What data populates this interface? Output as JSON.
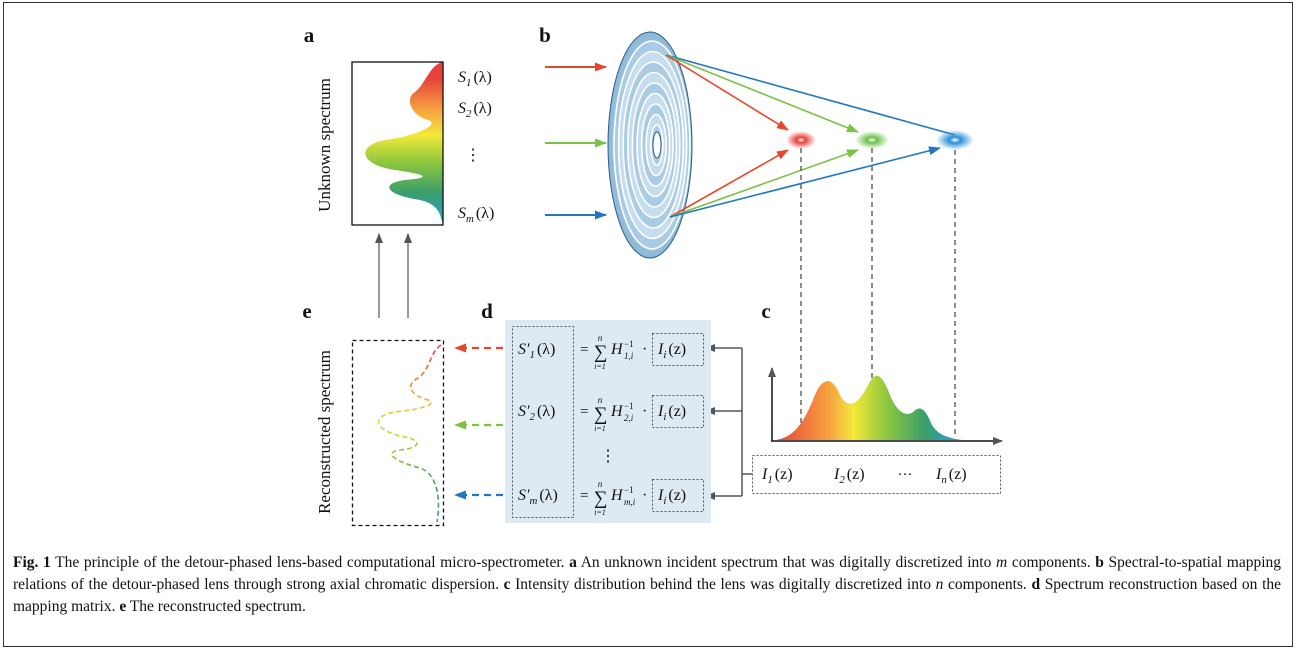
{
  "panel_labels": {
    "a": "a",
    "b": "b",
    "c": "c",
    "d": "d",
    "e": "e"
  },
  "panel_a": {
    "axis_label": "Unknown spectrum",
    "labels": [
      {
        "symbol": "S",
        "sub": "1",
        "arg": "(λ)"
      },
      {
        "symbol": "S",
        "sub": "2",
        "arg": "(λ)"
      },
      {
        "symbol": "S",
        "sub": "m",
        "arg": "(λ)"
      }
    ],
    "ellipsis": "⋮"
  },
  "panel_c": {
    "labels": [
      {
        "symbol": "I",
        "sub": "1",
        "arg": "(z)"
      },
      {
        "symbol": "I",
        "sub": "2",
        "arg": "(z)"
      },
      {
        "symbol": "I",
        "sub": "n",
        "arg": "(z)"
      }
    ],
    "ellipsis": "···"
  },
  "panel_d": {
    "rows": [
      {
        "lhs": {
          "symbol": "S′",
          "sub": "1",
          "arg": "(λ)"
        },
        "equals": "=",
        "sum": "∑",
        "upper": "n",
        "lower": "i=1",
        "matrix": {
          "symbol": "H",
          "sup": "−1",
          "sub": "1,i"
        },
        "dot": "·",
        "rhs": {
          "symbol": "I",
          "sub": "i",
          "arg": "(z)"
        }
      },
      {
        "lhs": {
          "symbol": "S′",
          "sub": "2",
          "arg": "(λ)"
        },
        "equals": "=",
        "sum": "∑",
        "upper": "n",
        "lower": "i=1",
        "matrix": {
          "symbol": "H",
          "sup": "−1",
          "sub": "2,i"
        },
        "dot": "·",
        "rhs": {
          "symbol": "I",
          "sub": "i",
          "arg": "(z)"
        }
      },
      {
        "lhs": {
          "symbol": "S′",
          "sub": "m",
          "arg": "(λ)"
        },
        "equals": "=",
        "sum": "∑",
        "upper": "n",
        "lower": "i=1",
        "matrix": {
          "symbol": "H",
          "sup": "−1",
          "sub": "m,i"
        },
        "dot": "·",
        "rhs": {
          "symbol": "I",
          "sub": "i",
          "arg": "(z)"
        }
      }
    ],
    "ellipsis": "⋮"
  },
  "panel_e": {
    "axis_label": "Reconstructed spectrum"
  },
  "caption": [
    {
      "text": "Fig. 1",
      "style": "bold"
    },
    {
      "text": " The principle of the detour-phased lens-based computational micro-spectrometer. "
    },
    {
      "text": "a",
      "style": "bold"
    },
    {
      "text": " An unknown incident spectrum that was digitally discretized into "
    },
    {
      "text": "m",
      "style": "italic"
    },
    {
      "text": " components. "
    },
    {
      "text": "b",
      "style": "bold"
    },
    {
      "text": " Spectral-to-spatial mapping relations of the detour-phased lens through strong axial chromatic dispersion. "
    },
    {
      "text": "c",
      "style": "bold"
    },
    {
      "text": " Intensity distribution behind the lens was digitally discretized into "
    },
    {
      "text": "n",
      "style": "italic"
    },
    {
      "text": " components. "
    },
    {
      "text": "d",
      "style": "bold"
    },
    {
      "text": " Spectrum reconstruction based on the mapping matrix. "
    },
    {
      "text": "e",
      "style": "bold"
    },
    {
      "text": " The reconstructed spectrum."
    }
  ]
}
